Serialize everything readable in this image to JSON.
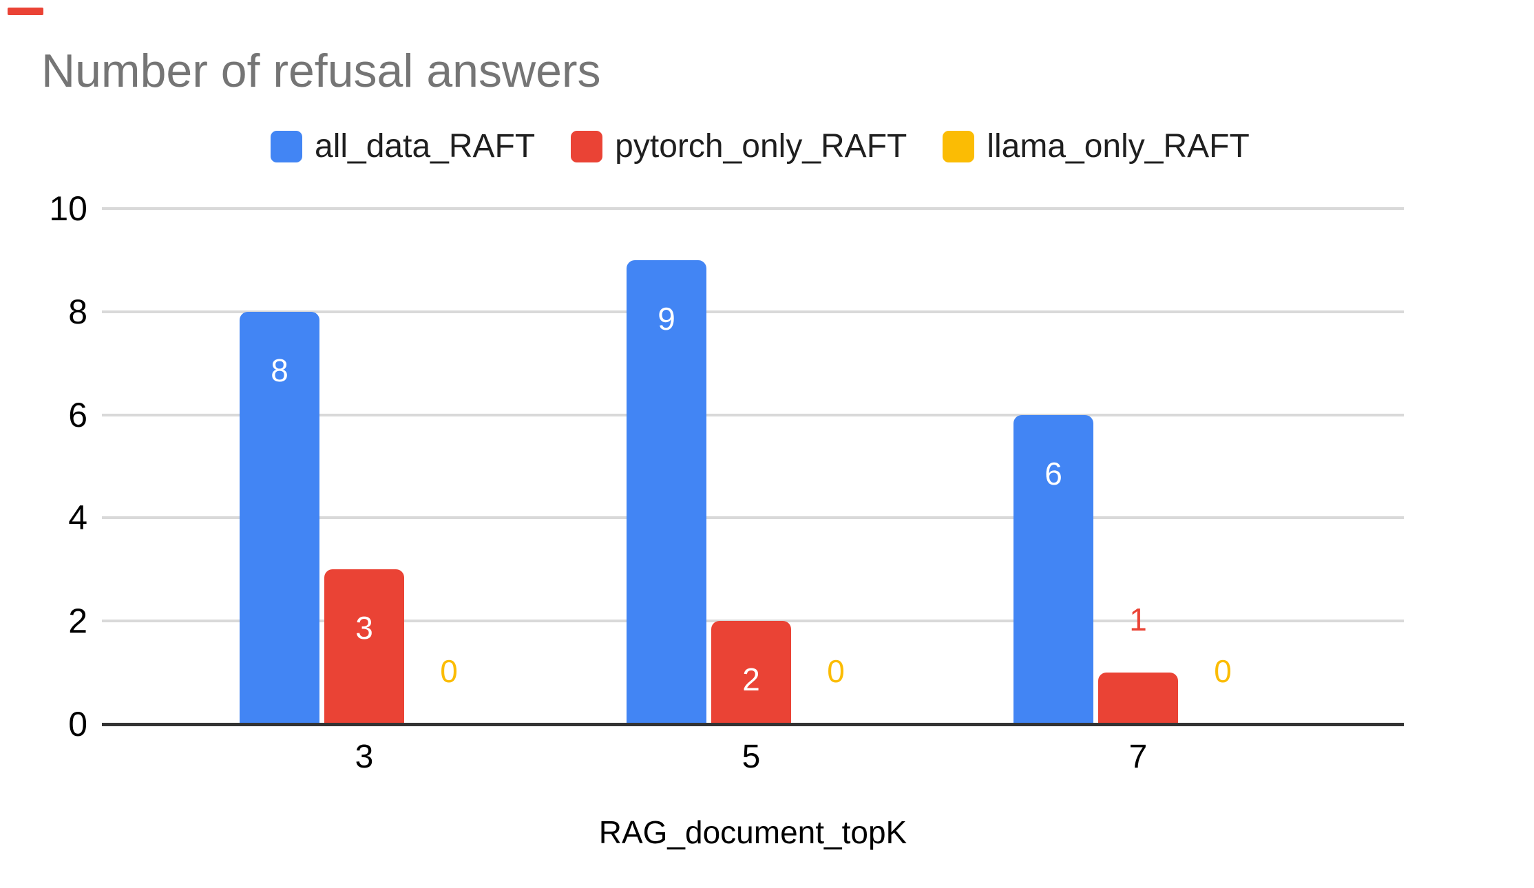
{
  "decorations": {
    "top_left_dash_color": "#EA4335"
  },
  "chart_data": {
    "type": "bar",
    "title": "Number of refusal answers",
    "title_color": "#757575",
    "xlabel": "RAG_document_topK",
    "ylabel": "",
    "categories": [
      "3",
      "5",
      "7"
    ],
    "series": [
      {
        "name": "all_data_RAFT",
        "color": "#4285F4",
        "values": [
          8,
          9,
          6
        ]
      },
      {
        "name": "pytorch_only_RAFT",
        "color": "#EA4335",
        "values": [
          3,
          2,
          1
        ]
      },
      {
        "name": "llama_only_RAFT",
        "color": "#FBBC04",
        "values": [
          0,
          0,
          0
        ]
      }
    ],
    "y_ticks": [
      0,
      2,
      4,
      6,
      8,
      10
    ],
    "ylim": [
      0,
      10
    ],
    "grid": true,
    "legend_position": "top",
    "data_labels": true,
    "data_label_inside_color": "#ffffff",
    "gridline_color": "#d9d9d9",
    "baseline_color": "#333333"
  }
}
